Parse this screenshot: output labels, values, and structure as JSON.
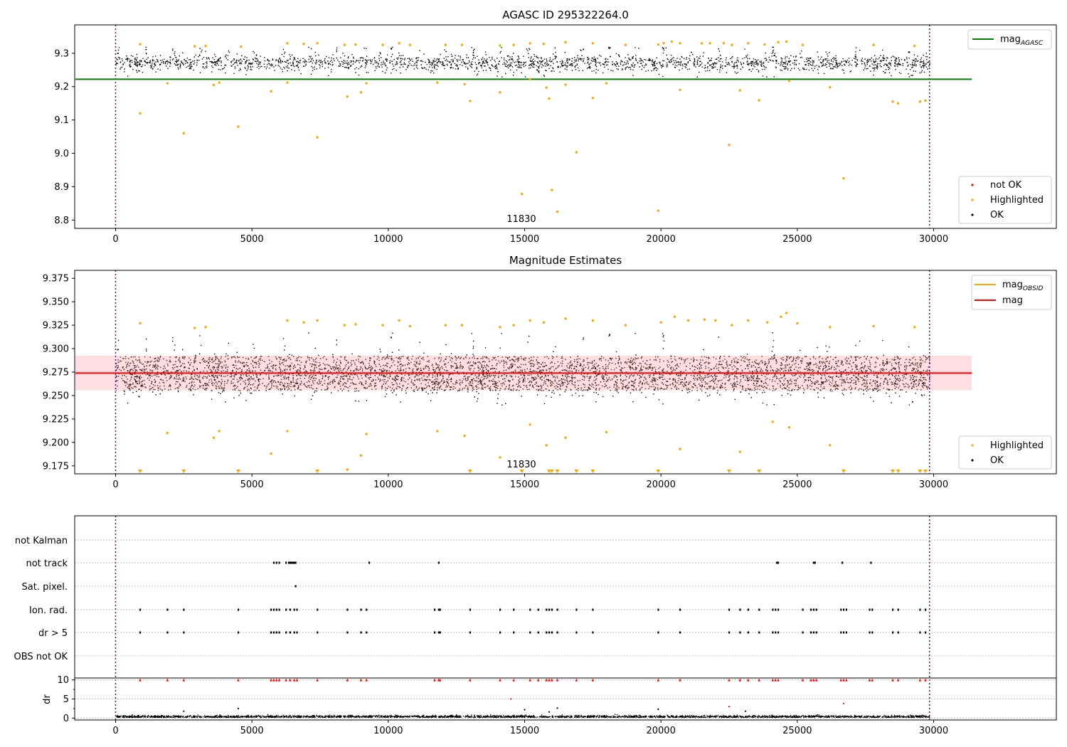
{
  "figure": {
    "colors": {
      "ok": "#000000",
      "not_ok": "#ff0000",
      "highlighted": "#ffa500",
      "agasc_line": "#008000",
      "obsid_line": "#ffa500",
      "mag_line": "#ff0000",
      "band": "#ffb6c1",
      "obs_marker": "#800080"
    }
  },
  "chart_data": [
    {
      "type": "scatter",
      "title": "AGASC ID 295322264.0",
      "xlim": [
        -1500,
        34500
      ],
      "ylim": [
        8.775,
        9.385
      ],
      "xticks": [
        0,
        5000,
        10000,
        15000,
        20000,
        25000,
        30000
      ],
      "yticks": [
        8.8,
        8.9,
        9.0,
        9.1,
        9.2,
        9.3
      ],
      "ytick_labels": [
        "8.8",
        "8.9",
        "9.0",
        "9.1",
        "9.2",
        "9.3"
      ],
      "obs_markers": [
        0,
        29850
      ],
      "annotation": {
        "text": "11830",
        "x": 14900,
        "y": 8.8
      },
      "reference_line": {
        "name_main": "mag",
        "name_sub": "AGASC",
        "y": 9.222,
        "x_range": [
          -1500,
          31400
        ]
      },
      "ok_band": {
        "x_range": [
          0,
          29850
        ],
        "y_center": 9.273,
        "y_spread": 0.026,
        "top_peaks": 9.32,
        "bottom_dips": 9.23
      },
      "series": [
        {
          "name": "not OK",
          "points": []
        },
        {
          "name": "Highlighted",
          "points": [
            [
              900,
              9.327
            ],
            [
              2900,
              9.321
            ],
            [
              3300,
              9.322
            ],
            [
              4600,
              9.32
            ],
            [
              6300,
              9.33
            ],
            [
              6900,
              9.328
            ],
            [
              7400,
              9.33
            ],
            [
              8400,
              9.325
            ],
            [
              8800,
              9.326
            ],
            [
              9800,
              9.325
            ],
            [
              10400,
              9.33
            ],
            [
              10800,
              9.325
            ],
            [
              12100,
              9.325
            ],
            [
              12700,
              9.325
            ],
            [
              14100,
              9.323
            ],
            [
              14600,
              9.325
            ],
            [
              15200,
              9.33
            ],
            [
              15700,
              9.328
            ],
            [
              16500,
              9.333
            ],
            [
              17500,
              9.33
            ],
            [
              18700,
              9.325
            ],
            [
              19900,
              9.326
            ],
            [
              20100,
              9.33
            ],
            [
              20400,
              9.335
            ],
            [
              20700,
              9.33
            ],
            [
              21500,
              9.33
            ],
            [
              21800,
              9.33
            ],
            [
              22300,
              9.33
            ],
            [
              22600,
              9.325
            ],
            [
              23200,
              9.33
            ],
            [
              23800,
              9.326
            ],
            [
              24300,
              9.333
            ],
            [
              24600,
              9.335
            ],
            [
              25200,
              9.325
            ],
            [
              27800,
              9.325
            ],
            [
              29300,
              9.322
            ],
            [
              900,
              9.12
            ],
            [
              1900,
              9.21
            ],
            [
              2500,
              9.06
            ],
            [
              3600,
              9.205
            ],
            [
              3800,
              9.212
            ],
            [
              4500,
              9.08
            ],
            [
              5700,
              9.186
            ],
            [
              6300,
              9.212
            ],
            [
              7400,
              9.048
            ],
            [
              8500,
              9.17
            ],
            [
              9000,
              9.183
            ],
            [
              9200,
              9.21
            ],
            [
              11800,
              9.212
            ],
            [
              12800,
              9.207
            ],
            [
              13000,
              9.157
            ],
            [
              14100,
              9.183
            ],
            [
              14900,
              8.878
            ],
            [
              15200,
              9.222
            ],
            [
              15800,
              9.197
            ],
            [
              15900,
              9.164
            ],
            [
              16000,
              8.89
            ],
            [
              16200,
              8.825
            ],
            [
              16500,
              9.206
            ],
            [
              16900,
              9.003
            ],
            [
              17500,
              9.166
            ],
            [
              18000,
              9.21
            ],
            [
              19900,
              8.828
            ],
            [
              20700,
              9.19
            ],
            [
              22500,
              9.025
            ],
            [
              22900,
              9.189
            ],
            [
              23600,
              9.159
            ],
            [
              24700,
              9.217
            ],
            [
              26200,
              9.198
            ],
            [
              26700,
              8.925
            ],
            [
              28500,
              9.155
            ],
            [
              28700,
              9.15
            ],
            [
              29500,
              9.155
            ],
            [
              29700,
              9.158
            ]
          ]
        },
        {
          "name": "OK",
          "points": "dense band (not individually legible)"
        }
      ],
      "legend": {
        "position": "lower-right",
        "entries": [
          "not OK",
          "Highlighted",
          "OK"
        ],
        "upper_right_entries": [
          "mag_AGASC"
        ]
      }
    },
    {
      "type": "scatter",
      "title": "Magnitude Estimates",
      "xlim": [
        -1500,
        34500
      ],
      "ylim": [
        9.1665,
        9.3835
      ],
      "xticks": [
        0,
        5000,
        10000,
        15000,
        20000,
        25000,
        30000
      ],
      "yticks": [
        9.175,
        9.2,
        9.225,
        9.25,
        9.275,
        9.3,
        9.325,
        9.35,
        9.375
      ],
      "ytick_labels": [
        "9.175",
        "9.200",
        "9.225",
        "9.250",
        "9.275",
        "9.300",
        "9.325",
        "9.350",
        "9.375"
      ],
      "obs_markers": [
        0,
        29850
      ],
      "annotation": {
        "text": "11830",
        "x": 14900,
        "y": 9.175
      },
      "reference_lines": [
        {
          "name": "mag",
          "y": 9.274,
          "band": [
            9.2555,
            9.2925
          ],
          "x_range": [
            -1500,
            31400
          ]
        },
        {
          "name_main": "mag",
          "name_sub": "OBSID",
          "y": null
        }
      ],
      "ok_band": {
        "x_range": [
          0,
          29850
        ],
        "y_center": 9.272,
        "y_spread": 0.024,
        "top_peaks": 9.318,
        "bottom_dips": 9.24
      },
      "series": [
        {
          "name": "Highlighted",
          "points": [
            [
              900,
              9.327
            ],
            [
              2900,
              9.322
            ],
            [
              3300,
              9.323
            ],
            [
              6300,
              9.33
            ],
            [
              6900,
              9.328
            ],
            [
              7400,
              9.33
            ],
            [
              8400,
              9.325
            ],
            [
              8800,
              9.326
            ],
            [
              9800,
              9.325
            ],
            [
              10400,
              9.33
            ],
            [
              10800,
              9.324
            ],
            [
              12100,
              9.325
            ],
            [
              12700,
              9.325
            ],
            [
              14100,
              9.323
            ],
            [
              14600,
              9.325
            ],
            [
              15200,
              9.33
            ],
            [
              15700,
              9.328
            ],
            [
              16500,
              9.332
            ],
            [
              17500,
              9.33
            ],
            [
              18700,
              9.325
            ],
            [
              20000,
              9.328
            ],
            [
              20500,
              9.334
            ],
            [
              21000,
              9.33
            ],
            [
              21600,
              9.331
            ],
            [
              22000,
              9.33
            ],
            [
              22600,
              9.325
            ],
            [
              23200,
              9.33
            ],
            [
              23900,
              9.328
            ],
            [
              24400,
              9.334
            ],
            [
              24600,
              9.338
            ],
            [
              25000,
              9.327
            ],
            [
              26200,
              9.323
            ],
            [
              27800,
              9.324
            ],
            [
              29300,
              9.323
            ],
            [
              1900,
              9.21
            ],
            [
              3600,
              9.205
            ],
            [
              3800,
              9.212
            ],
            [
              5700,
              9.188
            ],
            [
              6300,
              9.212
            ],
            [
              8500,
              9.171
            ],
            [
              9000,
              9.186
            ],
            [
              9200,
              9.209
            ],
            [
              11800,
              9.212
            ],
            [
              12800,
              9.207
            ],
            [
              14100,
              9.184
            ],
            [
              15200,
              9.219
            ],
            [
              15800,
              9.197
            ],
            [
              16500,
              9.205
            ],
            [
              18000,
              9.211
            ],
            [
              20700,
              9.193
            ],
            [
              22900,
              9.19
            ],
            [
              24100,
              9.222
            ],
            [
              24700,
              9.216
            ],
            [
              26200,
              9.197
            ]
          ]
        },
        {
          "name": "Highlighted (below axis)",
          "marker": "triangle-down",
          "x": [
            900,
            2500,
            4500,
            7400,
            13000,
            14900,
            15900,
            16000,
            16200,
            16900,
            17500,
            19900,
            22500,
            23600,
            26700,
            28500,
            28700,
            29500,
            29700
          ]
        },
        {
          "name": "OK",
          "points": "dense band (not individually legible)"
        }
      ],
      "legend": {
        "position": "lower-right",
        "entries": [
          "Highlighted",
          "OK"
        ],
        "upper_right_entries": [
          "mag_OBSID",
          "mag"
        ]
      }
    },
    {
      "type": "scatter",
      "title": "",
      "xlim": [
        -1500,
        34500
      ],
      "xticks": [
        0,
        5000,
        10000,
        15000,
        20000,
        25000,
        30000
      ],
      "obs_markers": [
        0,
        29850
      ],
      "flag_rows": [
        "not Kalman",
        "not track",
        "Sat. pixel.",
        "Ion. rad.",
        "dr > 5",
        "OBS not OK"
      ],
      "flags": {
        "not Kalman": [],
        "not track": [
          5800,
          5900,
          6000,
          6250,
          6350,
          6400,
          6450,
          6500,
          6550,
          6600,
          9300,
          11850,
          24250,
          24300,
          25600,
          25650,
          26650,
          27700
        ],
        "Sat. pixel.": [
          6600
        ],
        "Ion. rad.": [
          900,
          1900,
          2500,
          4500,
          5700,
          5800,
          5900,
          6000,
          6250,
          6400,
          6550,
          6650,
          7400,
          8500,
          9000,
          9200,
          11700,
          11850,
          11900,
          13000,
          14100,
          14600,
          15200,
          15500,
          15800,
          15900,
          16000,
          16200,
          16900,
          17500,
          19900,
          20700,
          22500,
          22900,
          23200,
          23600,
          24100,
          24200,
          24300,
          25200,
          25500,
          25600,
          25700,
          26600,
          26700,
          26800,
          27650,
          27750,
          28500,
          28700,
          29500,
          29700
        ],
        "dr > 5": [
          900,
          1900,
          2500,
          4500,
          5700,
          5800,
          5900,
          6000,
          6250,
          6400,
          6550,
          6650,
          7400,
          8500,
          9000,
          9200,
          11700,
          11850,
          11900,
          13000,
          14100,
          14600,
          15200,
          15500,
          15800,
          15900,
          16000,
          16200,
          16900,
          17500,
          19900,
          20700,
          22500,
          22900,
          23200,
          23600,
          24100,
          24200,
          24300,
          25200,
          25500,
          25600,
          25700,
          26600,
          26700,
          26800,
          27650,
          27750,
          28500,
          28700,
          29500,
          29700
        ],
        "OBS not OK": []
      },
      "dr_panel": {
        "ylabel": "dr",
        "ylim": [
          -0.5,
          10.5
        ],
        "yticks": [
          0,
          5,
          10
        ],
        "ytick_labels": [
          "0",
          "5",
          "10"
        ],
        "clipped_at_10": [
          900,
          1900,
          2500,
          4500,
          5700,
          5800,
          5900,
          6000,
          6250,
          6400,
          6550,
          6650,
          7400,
          8500,
          9000,
          9200,
          11700,
          11850,
          11900,
          13000,
          14100,
          14600,
          15200,
          15500,
          15800,
          15900,
          16000,
          16200,
          16900,
          17500,
          19900,
          20700,
          22500,
          22900,
          23200,
          23600,
          24100,
          24200,
          24300,
          25200,
          25500,
          25600,
          25700,
          26600,
          26700,
          26800,
          27650,
          27750,
          28500,
          28700,
          29500,
          29700
        ],
        "outliers": [
          [
            14500,
            5.0
          ],
          [
            22500,
            3.0
          ],
          [
            26700,
            3.8
          ],
          [
            16200,
            2.6
          ],
          [
            15000,
            2.2
          ],
          [
            4500,
            2.5
          ],
          [
            2500,
            1.8
          ],
          [
            19900,
            2.3
          ],
          [
            23100,
            1.8
          ],
          [
            15900,
            1.6
          ]
        ],
        "baseline": 0.3
      }
    }
  ]
}
